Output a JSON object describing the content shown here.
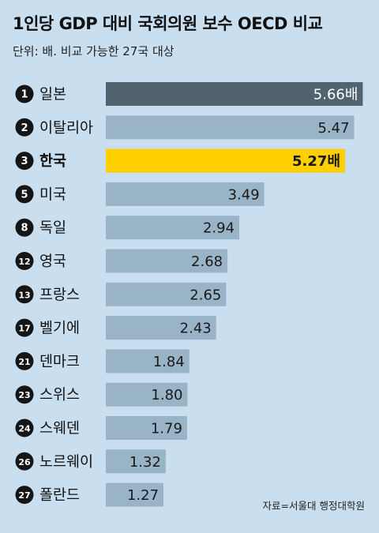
{
  "title": "1인당 GDP 대비 국회의원 보수 OECD 비교",
  "subtitle": "단위: 배. 비교 가능한 27국 대상",
  "source": "자료=서울대 행정대학원",
  "colors": {
    "background": "#c9dff0",
    "bar_default": "#9ab4c7",
    "bar_first": "#526370",
    "bar_highlight": "#ffd000",
    "rank_circle": "#151515"
  },
  "chart_data": {
    "type": "bar",
    "orientation": "horizontal",
    "title": "1인당 GDP 대비 국회의원 보수 OECD 비교",
    "unit": "배",
    "highlight": "한국",
    "categories": [
      "일본",
      "이탈리아",
      "한국",
      "미국",
      "독일",
      "영국",
      "프랑스",
      "벨기에",
      "덴마크",
      "스위스",
      "스웨덴",
      "노르웨이",
      "폴란드"
    ],
    "ranks": [
      "1",
      "2",
      "3",
      "5",
      "8",
      "12",
      "13",
      "17",
      "21",
      "23",
      "24",
      "26",
      "27"
    ],
    "values": [
      5.66,
      5.47,
      5.27,
      3.49,
      2.94,
      2.68,
      2.65,
      2.43,
      1.84,
      1.8,
      1.79,
      1.32,
      1.27
    ],
    "value_labels": [
      "5.66배",
      "5.47",
      "5.27배",
      "3.49",
      "2.94",
      "2.68",
      "2.65",
      "2.43",
      "1.84",
      "1.80",
      "1.79",
      "1.32",
      "1.27"
    ]
  }
}
